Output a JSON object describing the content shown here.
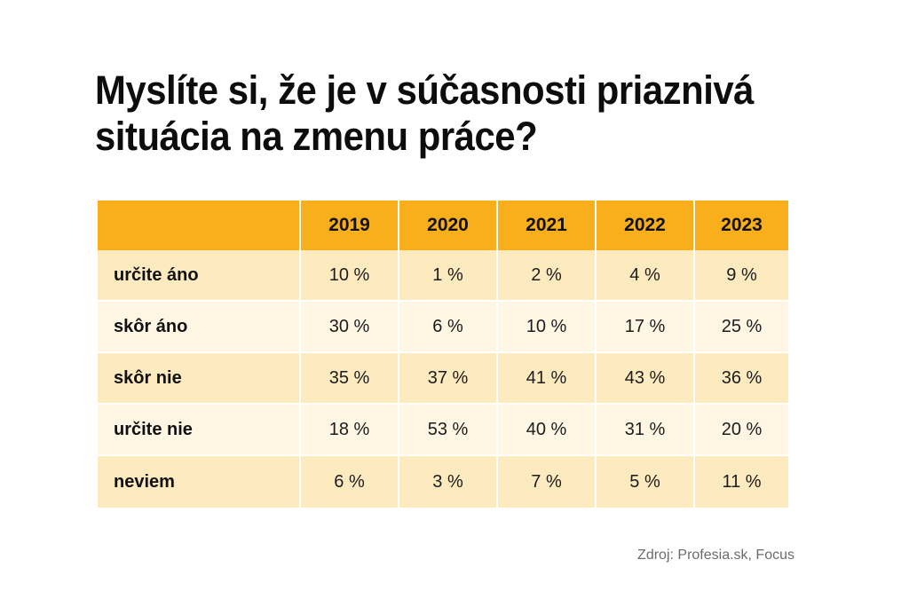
{
  "title": "Myslíte si, že je v súčasnosti priaznivá situácia na zmenu práce?",
  "source": "Zdroj: Profesia.sk, Focus",
  "colors": {
    "header": "#f9ae1b",
    "row_odd": "#fdeabf",
    "row_even": "#fff6e4",
    "text": "#111111",
    "source_text": "#6b6b6b"
  },
  "chart_data": {
    "type": "table",
    "title": "Myslíte si, že je v súčasnosti priaznivá situácia na zmenu práce?",
    "columns": [
      "",
      "2019",
      "2020",
      "2021",
      "2022",
      "2023"
    ],
    "rows": [
      {
        "label": "určite áno",
        "values": [
          "10 %",
          "1 %",
          "2 %",
          "4 %",
          "9 %"
        ]
      },
      {
        "label": "skôr áno",
        "values": [
          "30 %",
          "6 %",
          "10 %",
          "17 %",
          "25 %"
        ]
      },
      {
        "label": "skôr nie",
        "values": [
          "35 %",
          "37 %",
          "41 %",
          "43 %",
          "36 %"
        ]
      },
      {
        "label": "určite nie",
        "values": [
          "18 %",
          "53 %",
          "40 %",
          "31 %",
          "20 %"
        ]
      },
      {
        "label": "neviem",
        "values": [
          "6 %",
          "3 %",
          "7 %",
          "5 %",
          "11 %"
        ]
      }
    ],
    "source": "Zdroj: Profesia.sk, Focus"
  }
}
